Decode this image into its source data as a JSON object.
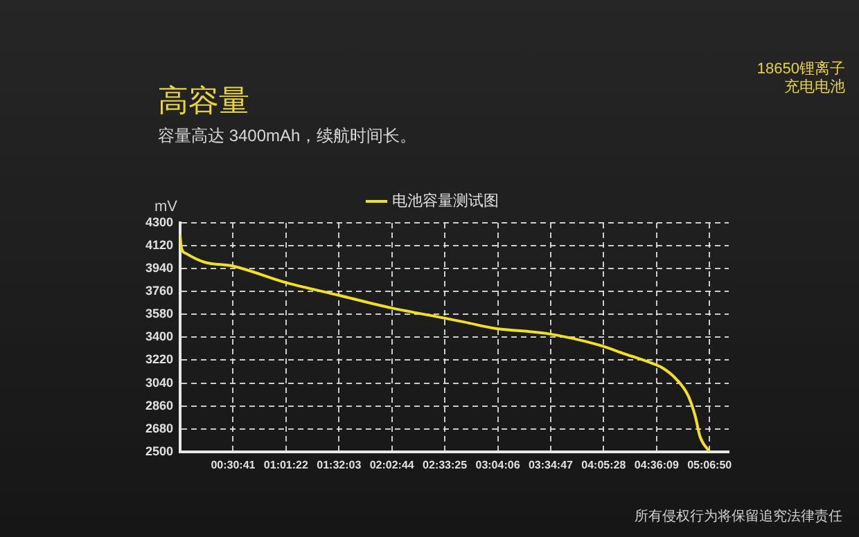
{
  "chart_data": {
    "type": "line",
    "title": "高容量",
    "subtitle": "容量高达 3400mAh，续航时间长。",
    "ylabel": "mV",
    "annotations": [
      "18650锂离子",
      "充电电池",
      "所有侵权行为将保留追究法律责任"
    ],
    "series": [
      {
        "name": "电池容量测试图",
        "color": "#f2e21c",
        "x": [
          0,
          0.01,
          0.055,
          0.237,
          0.511,
          1.023,
          1.534,
          2.046,
          2.557,
          2.744,
          3.04,
          3.541,
          4.042,
          4.293,
          4.544,
          4.658,
          4.794,
          4.908,
          4.976,
          5.022,
          5.1139
        ],
        "values": [
          4200,
          4110,
          4060,
          3990,
          3960,
          3830,
          3730,
          3630,
          3550,
          3520,
          3470,
          3430,
          3340,
          3270,
          3200,
          3160,
          3070,
          2940,
          2780,
          2620,
          2500
        ]
      }
    ],
    "xlim": [
      0,
      5.3
    ],
    "xticks": [
      {
        "value": 0.5114,
        "label": "00:30:41"
      },
      {
        "value": 1.0228,
        "label": "01:01:22"
      },
      {
        "value": 1.5342,
        "label": "01:32:03"
      },
      {
        "value": 2.0456,
        "label": "02:02:44"
      },
      {
        "value": 2.5569,
        "label": "02:33:25"
      },
      {
        "value": 3.0683,
        "label": "03:04:06"
      },
      {
        "value": 3.5797,
        "label": "03:34:47"
      },
      {
        "value": 4.0911,
        "label": "04:05:28"
      },
      {
        "value": 4.6025,
        "label": "04:36:09"
      },
      {
        "value": 5.1139,
        "label": "05:06:50"
      }
    ],
    "ylim": [
      2500,
      4300
    ],
    "yticks": [
      2500,
      2680,
      2860,
      3040,
      3220,
      3400,
      3580,
      3760,
      3940,
      4120,
      4300
    ],
    "grid": true,
    "legend": "top",
    "marker": "none",
    "line_style": "solid"
  }
}
